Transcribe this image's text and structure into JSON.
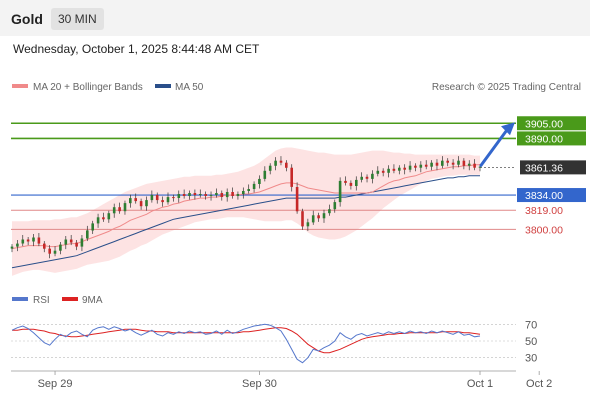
{
  "header": {
    "asset": "Gold",
    "timeframe": "30 MIN",
    "datetime": "Wednesday, October 1, 2025 8:44:48 AM CET"
  },
  "legend": {
    "ma20": "MA 20 + Bollinger Bands",
    "ma50": "MA 50",
    "credit": "Research © 2025 Trading Central"
  },
  "colors": {
    "ma20": "#f08a8a",
    "ma50": "#2a4f8a",
    "band": "#fde0e0",
    "green": "#4a9a1a",
    "blue": "#3366cc",
    "red": "#d04040",
    "price": "#333333",
    "up": "#2e7d32",
    "down": "#c62828"
  },
  "chart_data": {
    "type": "candlestick",
    "ylim": [
      3748,
      3928
    ],
    "current_price": 3861.36,
    "x_labels": [
      {
        "label": "Sep 29",
        "index": 8
      },
      {
        "label": "Sep 30",
        "index": 46
      },
      {
        "label": "Oct 1",
        "index": 87
      },
      {
        "label": "Oct 2",
        "index": 98
      }
    ],
    "levels": [
      {
        "value": 3905.0,
        "label": "3905.00",
        "kind": "resistance",
        "tag": "box"
      },
      {
        "value": 3890.0,
        "label": "3890.00",
        "kind": "resistance",
        "tag": "box"
      },
      {
        "value": 3861.36,
        "label": "3861.36",
        "kind": "price",
        "tag": "box"
      },
      {
        "value": 3834.0,
        "label": "3834.00",
        "kind": "pivot",
        "tag": "box"
      },
      {
        "value": 3819.0,
        "label": "3819.00",
        "kind": "support",
        "tag": "text"
      },
      {
        "value": 3800.0,
        "label": "3800.00",
        "kind": "support",
        "tag": "text"
      }
    ],
    "close": [
      3783,
      3786,
      3790,
      3788,
      3792,
      3786,
      3781,
      3776,
      3779,
      3785,
      3790,
      3787,
      3783,
      3791,
      3799,
      3806,
      3812,
      3810,
      3816,
      3822,
      3818,
      3826,
      3831,
      3828,
      3823,
      3829,
      3834,
      3829,
      3827,
      3832,
      3831,
      3835,
      3833,
      3836,
      3834,
      3835,
      3833,
      3834,
      3836,
      3832,
      3837,
      3833,
      3835,
      3838,
      3840,
      3845,
      3850,
      3858,
      3863,
      3868,
      3866,
      3861,
      3842,
      3818,
      3803,
      3807,
      3814,
      3811,
      3816,
      3820,
      3827,
      3848,
      3846,
      3843,
      3849,
      3852,
      3850,
      3855,
      3858,
      3856,
      3860,
      3858,
      3861,
      3859,
      3863,
      3861,
      3864,
      3862,
      3866,
      3863,
      3868,
      3866,
      3864,
      3868,
      3863,
      3865,
      3861,
      3862
    ],
    "ma20": [
      3781,
      3782,
      3783,
      3784,
      3784,
      3784,
      3784,
      3783,
      3783,
      3784,
      3785,
      3786,
      3786,
      3788,
      3790,
      3792,
      3794,
      3796,
      3798,
      3801,
      3803,
      3806,
      3809,
      3811,
      3813,
      3815,
      3818,
      3820,
      3822,
      3823,
      3825,
      3826,
      3828,
      3829,
      3830,
      3831,
      3831,
      3832,
      3832,
      3833,
      3834,
      3834,
      3834,
      3835,
      3835,
      3836,
      3837,
      3839,
      3841,
      3843,
      3845,
      3846,
      3846,
      3845,
      3843,
      3841,
      3840,
      3839,
      3838,
      3837,
      3836,
      3836,
      3836,
      3836,
      3836,
      3836,
      3836,
      3837,
      3840,
      3843,
      3846,
      3848,
      3849,
      3851,
      3852,
      3853,
      3855,
      3857,
      3858,
      3859,
      3860,
      3861,
      3862,
      3862,
      3863,
      3863,
      3864,
      3864
    ],
    "bb_upper": [
      3808,
      3808,
      3808,
      3808,
      3809,
      3809,
      3809,
      3809,
      3810,
      3810,
      3811,
      3812,
      3812,
      3814,
      3816,
      3819,
      3822,
      3825,
      3828,
      3831,
      3834,
      3837,
      3839,
      3841,
      3843,
      3845,
      3846,
      3847,
      3848,
      3849,
      3850,
      3851,
      3852,
      3852,
      3853,
      3853,
      3853,
      3853,
      3854,
      3854,
      3855,
      3856,
      3857,
      3859,
      3861,
      3863,
      3866,
      3870,
      3874,
      3878,
      3880,
      3881,
      3881,
      3880,
      3879,
      3878,
      3877,
      3876,
      3876,
      3875,
      3874,
      3874,
      3874,
      3874,
      3875,
      3876,
      3877,
      3878,
      3878,
      3878,
      3877,
      3876,
      3876,
      3875,
      3875,
      3874,
      3874,
      3874,
      3874,
      3874,
      3874,
      3874,
      3874,
      3874,
      3874,
      3874,
      3873,
      3873
    ],
    "bb_lower": [
      3754,
      3756,
      3758,
      3759,
      3760,
      3760,
      3759,
      3758,
      3757,
      3758,
      3759,
      3760,
      3761,
      3763,
      3765,
      3766,
      3767,
      3768,
      3769,
      3771,
      3773,
      3776,
      3779,
      3781,
      3784,
      3786,
      3789,
      3792,
      3795,
      3797,
      3799,
      3801,
      3803,
      3805,
      3807,
      3808,
      3809,
      3810,
      3810,
      3811,
      3812,
      3812,
      3812,
      3812,
      3811,
      3810,
      3809,
      3808,
      3808,
      3808,
      3808,
      3809,
      3809,
      3806,
      3802,
      3797,
      3794,
      3792,
      3791,
      3790,
      3790,
      3791,
      3793,
      3796,
      3799,
      3803,
      3807,
      3811,
      3816,
      3821,
      3825,
      3829,
      3833,
      3836,
      3839,
      3842,
      3845,
      3848,
      3850,
      3851,
      3852,
      3853,
      3853,
      3854,
      3854,
      3854,
      3854,
      3854
    ],
    "ma50": [
      3762,
      3763,
      3764,
      3765,
      3766,
      3767,
      3768,
      3769,
      3770,
      3771,
      3772,
      3773,
      3774,
      3776,
      3778,
      3780,
      3782,
      3784,
      3786,
      3788,
      3790,
      3792,
      3794,
      3796,
      3798,
      3800,
      3802,
      3804,
      3806,
      3808,
      3810,
      3811,
      3812,
      3813,
      3814,
      3815,
      3816,
      3817,
      3818,
      3819,
      3820,
      3821,
      3822,
      3823,
      3824,
      3825,
      3826,
      3827,
      3828,
      3829,
      3830,
      3831,
      3831,
      3831,
      3831,
      3831,
      3831,
      3831,
      3831,
      3831,
      3831,
      3832,
      3832,
      3833,
      3834,
      3835,
      3836,
      3837,
      3838,
      3839,
      3840,
      3841,
      3842,
      3843,
      3844,
      3845,
      3846,
      3847,
      3848,
      3849,
      3850,
      3851,
      3851,
      3852,
      3852,
      3853,
      3853,
      3853
    ],
    "rsi": {
      "ylim": [
        20,
        80
      ],
      "ticks": [
        70,
        50,
        30
      ],
      "legend_rsi": "RSI",
      "legend_ma": "9MA",
      "rsi_values": [
        63,
        66,
        68,
        65,
        60,
        54,
        48,
        45,
        52,
        58,
        55,
        60,
        62,
        58,
        55,
        63,
        66,
        67,
        64,
        67,
        65,
        62,
        64,
        60,
        57,
        60,
        63,
        58,
        56,
        60,
        58,
        61,
        59,
        62,
        60,
        61,
        58,
        59,
        62,
        58,
        63,
        59,
        61,
        64,
        66,
        68,
        69,
        70,
        69,
        66,
        62,
        52,
        40,
        28,
        24,
        30,
        40,
        38,
        42,
        45,
        50,
        60,
        55,
        52,
        57,
        59,
        56,
        58,
        60,
        58,
        61,
        59,
        61,
        59,
        62,
        60,
        61,
        59,
        62,
        60,
        62,
        60,
        58,
        61,
        57,
        58,
        55,
        56
      ],
      "ma_values": [
        63,
        63,
        64,
        64,
        64,
        63,
        62,
        60,
        59,
        57,
        56,
        55,
        55,
        56,
        57,
        58,
        59,
        60,
        61,
        62,
        63,
        64,
        64,
        64,
        63,
        62,
        62,
        61,
        61,
        61,
        60,
        60,
        60,
        60,
        60,
        60,
        60,
        60,
        60,
        60,
        60,
        60,
        60,
        61,
        61,
        62,
        63,
        64,
        65,
        66,
        66,
        65,
        62,
        58,
        52,
        46,
        42,
        38,
        36,
        36,
        38,
        40,
        43,
        46,
        49,
        52,
        54,
        55,
        56,
        57,
        58,
        58,
        59,
        59,
        60,
        60,
        60,
        60,
        60,
        60,
        61,
        61,
        61,
        61,
        60,
        60,
        59,
        58
      ]
    }
  }
}
